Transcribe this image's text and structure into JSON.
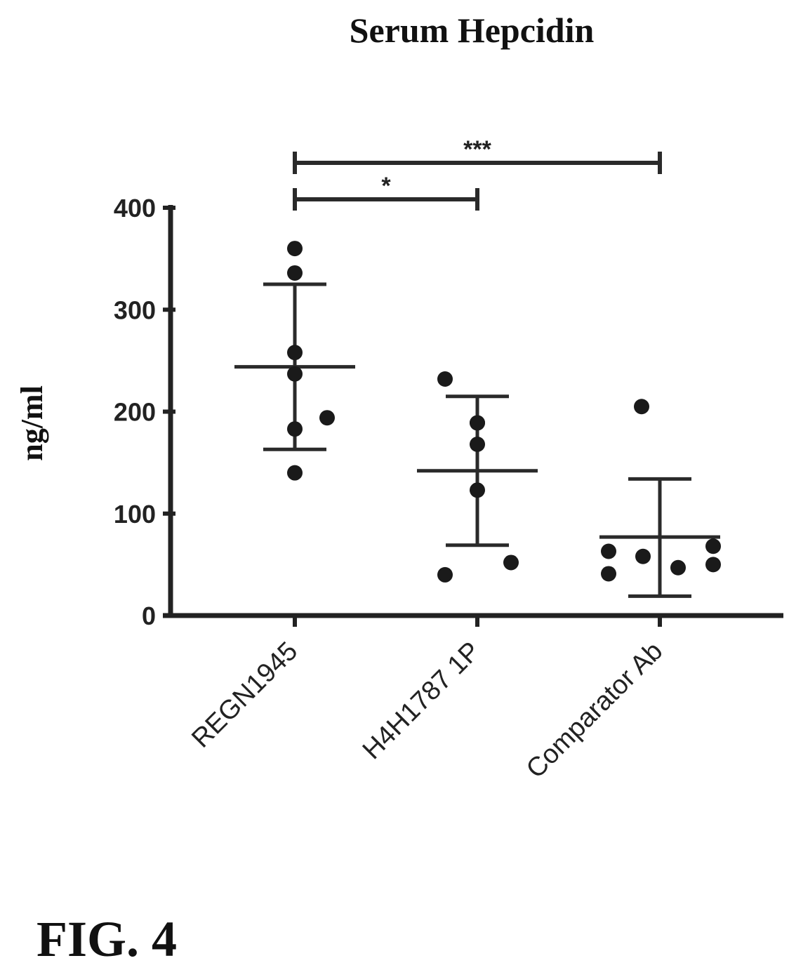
{
  "figure_label": "FIG. 4",
  "chart_data": {
    "type": "scatter",
    "title": "Serum Hepcidin",
    "ylabel": "ng/ml",
    "xlabel": "",
    "ylim": [
      0,
      400
    ],
    "yticks": [
      0,
      100,
      200,
      300,
      400
    ],
    "categories": [
      "REGN1945",
      "H4H1787 1P",
      "Comparator Ab"
    ],
    "series": [
      {
        "category": "REGN1945",
        "points": [
          360,
          336,
          258,
          237,
          183,
          194,
          140
        ],
        "mean": 244,
        "sd_upper": 325,
        "sd_lower": 163
      },
      {
        "category": "H4H1787 1P",
        "points": [
          232,
          189,
          189,
          168,
          123,
          52,
          40
        ],
        "mean": 142,
        "sd_upper": 215,
        "sd_lower": 69
      },
      {
        "category": "Comparator Ab",
        "points": [
          205,
          63,
          41,
          58,
          47,
          68,
          50
        ],
        "mean": 77,
        "sd_upper": 134,
        "sd_lower": 19
      }
    ],
    "significance": [
      {
        "from": "REGN1945",
        "to": "H4H1787 1P",
        "label": "*"
      },
      {
        "from": "REGN1945",
        "to": "Comparator Ab",
        "label": "***"
      }
    ],
    "grid": false,
    "legend": "none"
  }
}
